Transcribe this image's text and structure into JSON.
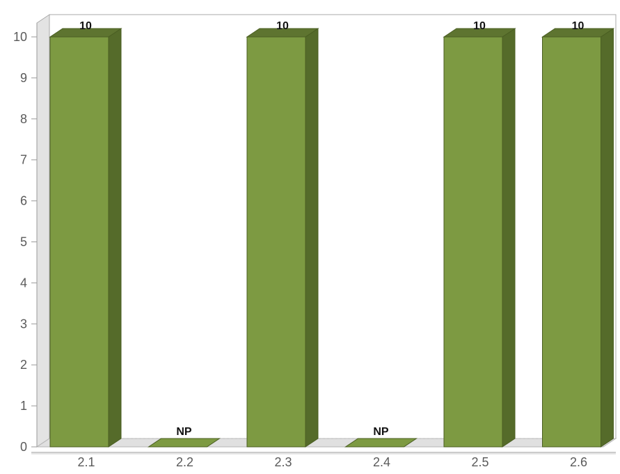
{
  "chart_data": {
    "type": "bar",
    "categories": [
      "2.1",
      "2.2",
      "2.3",
      "2.4",
      "2.5",
      "2.6"
    ],
    "values": [
      10,
      0,
      10,
      0,
      10,
      10
    ],
    "data_labels": [
      "10",
      "NP",
      "10",
      "NP",
      "10",
      "10"
    ],
    "ylim": [
      0,
      10
    ],
    "yticks": [
      "0",
      "1",
      "2",
      "3",
      "4",
      "5",
      "6",
      "7",
      "8",
      "9",
      "10"
    ],
    "title": "",
    "xlabel": "",
    "ylabel": "",
    "grid": false,
    "style": "3d",
    "colors": {
      "bar_front": "#7d9a42",
      "bar_top": "#5e7430",
      "bar_side": "#556b2a",
      "bar_edge": "#4a5e22",
      "wall": "#e3e3e3",
      "floor": "#e0e0e0",
      "axis": "#9a9a9a"
    }
  }
}
